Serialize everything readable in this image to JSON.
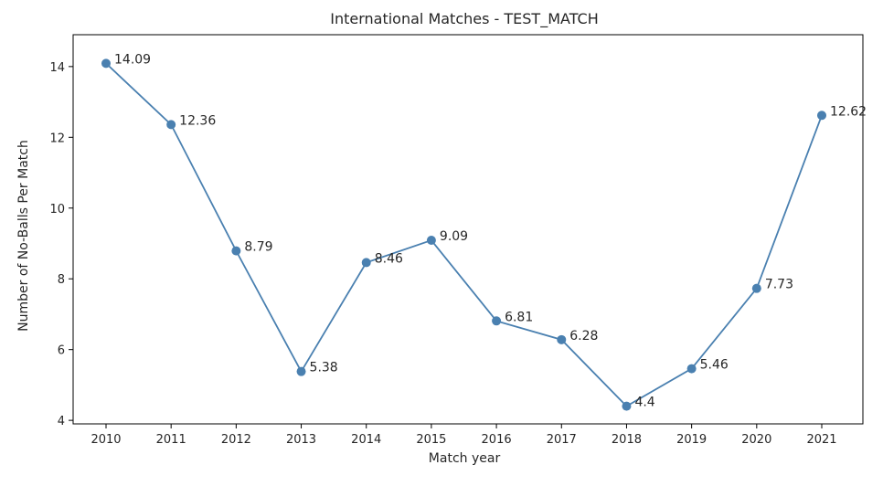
{
  "chart_data": {
    "type": "line",
    "title": "International Matches - TEST_MATCH",
    "xlabel": "Match year",
    "ylabel": "Number of No-Balls Per Match",
    "x": [
      "2010",
      "2011",
      "2012",
      "2013",
      "2014",
      "2015",
      "2016",
      "2017",
      "2018",
      "2019",
      "2020",
      "2021"
    ],
    "y": [
      14.09,
      12.36,
      8.79,
      5.38,
      8.46,
      9.09,
      6.81,
      6.28,
      4.4,
      5.46,
      7.73,
      12.62
    ],
    "data_labels": [
      "14.09",
      "12.36",
      "8.79",
      "5.38",
      "8.46",
      "9.09",
      "6.81",
      "6.28",
      "4.4",
      "5.46",
      "7.73",
      "12.62"
    ],
    "yticks": [
      "4",
      "6",
      "8",
      "10",
      "12",
      "14"
    ],
    "ylim": [
      3.9,
      14.9
    ],
    "grid": false,
    "line_color": "#4a80b0",
    "marker": "circle"
  }
}
